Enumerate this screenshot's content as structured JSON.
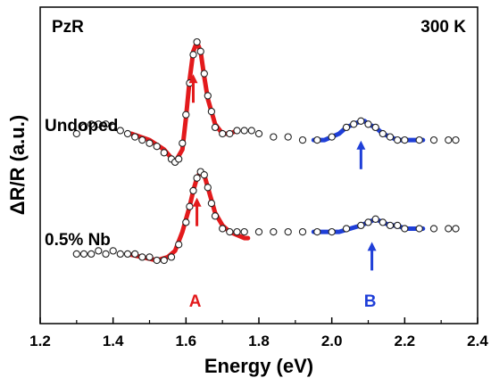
{
  "chart_data": {
    "type": "line",
    "title": "",
    "xlabel": "Energy (eV)",
    "ylabel": "ΔR/R (a.u.)",
    "xlim": [
      1.2,
      2.4
    ],
    "x_ticks": [
      "1.2",
      "1.4",
      "1.6",
      "1.8",
      "2.0",
      "2.2",
      "2.4"
    ],
    "y_ticks": [],
    "ylim": [
      0,
      1
    ],
    "corner_labels": {
      "left": "PzR",
      "right": "300 K"
    },
    "colors": {
      "data_marker": "#222222",
      "fit_A": "#e31a1c",
      "fit_B": "#1f3fd8"
    },
    "series": [
      {
        "label": "Undoped",
        "marker": "open-circle",
        "data": {
          "x": [
            1.3,
            1.32,
            1.34,
            1.36,
            1.38,
            1.4,
            1.42,
            1.44,
            1.46,
            1.48,
            1.5,
            1.52,
            1.54,
            1.56,
            1.57,
            1.58,
            1.59,
            1.6,
            1.61,
            1.62,
            1.63,
            1.64,
            1.65,
            1.66,
            1.67,
            1.68,
            1.7,
            1.72,
            1.74,
            1.76,
            1.78,
            1.8,
            1.84,
            1.88,
            1.92,
            1.96,
            2.0,
            2.04,
            2.06,
            2.08,
            2.1,
            2.12,
            2.14,
            2.16,
            2.18,
            2.2,
            2.24,
            2.28,
            2.32,
            2.34
          ],
          "y": [
            0.6,
            0.62,
            0.63,
            0.63,
            0.63,
            0.62,
            0.61,
            0.6,
            0.59,
            0.58,
            0.57,
            0.56,
            0.54,
            0.52,
            0.51,
            0.52,
            0.57,
            0.66,
            0.76,
            0.85,
            0.89,
            0.86,
            0.79,
            0.72,
            0.67,
            0.62,
            0.6,
            0.6,
            0.61,
            0.61,
            0.61,
            0.6,
            0.59,
            0.59,
            0.58,
            0.58,
            0.59,
            0.62,
            0.63,
            0.64,
            0.63,
            0.62,
            0.6,
            0.59,
            0.58,
            0.58,
            0.58,
            0.58,
            0.58,
            0.58
          ]
        },
        "fits": [
          {
            "name": "A",
            "color": "fit_A",
            "x": [
              1.45,
              1.5,
              1.54,
              1.57,
              1.59,
              1.6,
              1.61,
              1.62,
              1.63,
              1.64,
              1.65,
              1.66,
              1.68,
              1.7,
              1.72,
              1.74
            ],
            "y": [
              0.6,
              0.58,
              0.55,
              0.51,
              0.55,
              0.65,
              0.77,
              0.86,
              0.89,
              0.86,
              0.78,
              0.71,
              0.63,
              0.6,
              0.6,
              0.61
            ]
          },
          {
            "name": "B",
            "color": "fit_B",
            "x": [
              1.95,
              1.98,
              2.0,
              2.02,
              2.04,
              2.06,
              2.08,
              2.09,
              2.1,
              2.12,
              2.14,
              2.16,
              2.18,
              2.2,
              2.22,
              2.25
            ],
            "y": [
              0.58,
              0.58,
              0.59,
              0.6,
              0.62,
              0.63,
              0.64,
              0.64,
              0.63,
              0.62,
              0.6,
              0.59,
              0.58,
              0.58,
              0.58,
              0.58
            ]
          }
        ],
        "arrows": [
          {
            "x": 1.62,
            "color": "fit_A"
          },
          {
            "x": 2.08,
            "color": "fit_B"
          }
        ]
      },
      {
        "label": "0.5% Nb",
        "marker": "open-circle",
        "data": {
          "x": [
            1.3,
            1.32,
            1.34,
            1.36,
            1.38,
            1.4,
            1.42,
            1.44,
            1.46,
            1.48,
            1.5,
            1.52,
            1.54,
            1.56,
            1.58,
            1.6,
            1.61,
            1.62,
            1.63,
            1.64,
            1.65,
            1.66,
            1.67,
            1.68,
            1.7,
            1.72,
            1.74,
            1.76,
            1.8,
            1.84,
            1.88,
            1.92,
            1.96,
            2.0,
            2.04,
            2.08,
            2.1,
            2.12,
            2.14,
            2.16,
            2.18,
            2.2,
            2.24,
            2.28,
            2.32,
            2.34
          ],
          "y": [
            0.22,
            0.22,
            0.22,
            0.23,
            0.22,
            0.23,
            0.22,
            0.22,
            0.22,
            0.21,
            0.21,
            0.2,
            0.2,
            0.21,
            0.25,
            0.32,
            0.37,
            0.42,
            0.46,
            0.48,
            0.47,
            0.43,
            0.38,
            0.34,
            0.3,
            0.29,
            0.29,
            0.29,
            0.29,
            0.29,
            0.29,
            0.29,
            0.29,
            0.29,
            0.3,
            0.31,
            0.32,
            0.33,
            0.32,
            0.31,
            0.31,
            0.3,
            0.3,
            0.3,
            0.3,
            0.3
          ]
        },
        "fits": [
          {
            "name": "A",
            "color": "fit_A",
            "x": [
              1.44,
              1.48,
              1.52,
              1.55,
              1.57,
              1.59,
              1.61,
              1.62,
              1.63,
              1.64,
              1.65,
              1.66,
              1.68,
              1.7,
              1.72,
              1.74,
              1.76,
              1.77
            ],
            "y": [
              0.22,
              0.21,
              0.2,
              0.21,
              0.23,
              0.29,
              0.37,
              0.42,
              0.46,
              0.48,
              0.47,
              0.43,
              0.35,
              0.31,
              0.29,
              0.28,
              0.27,
              0.27
            ]
          },
          {
            "name": "B",
            "color": "fit_B",
            "x": [
              1.95,
              1.98,
              2.02,
              2.05,
              2.08,
              2.1,
              2.12,
              2.14,
              2.16,
              2.18,
              2.2,
              2.22,
              2.25
            ],
            "y": [
              0.29,
              0.29,
              0.29,
              0.3,
              0.31,
              0.32,
              0.33,
              0.32,
              0.31,
              0.31,
              0.3,
              0.3,
              0.3
            ]
          }
        ],
        "arrows": [
          {
            "x": 1.63,
            "color": "fit_A"
          },
          {
            "x": 2.11,
            "color": "fit_B"
          }
        ]
      }
    ],
    "peak_labels": [
      {
        "text": "A",
        "x": 1.63,
        "color": "fit_A"
      },
      {
        "text": "B",
        "x": 2.11,
        "color": "fit_B"
      }
    ]
  }
}
